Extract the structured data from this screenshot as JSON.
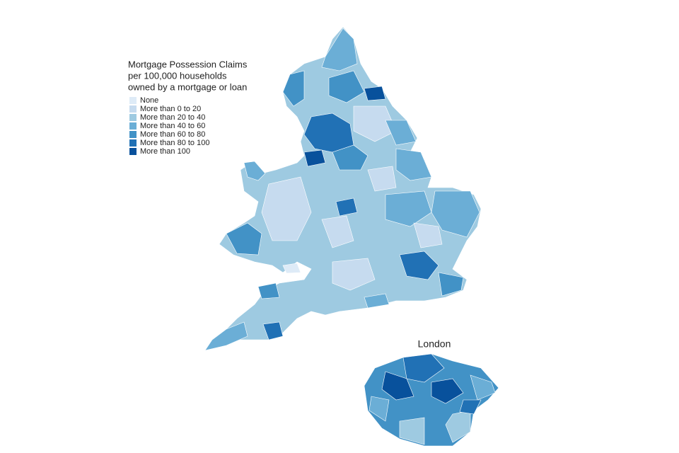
{
  "legend": {
    "title": [
      "Mortgage Possession Claims",
      "per 100,000 households",
      "owned by a mortgage or loan"
    ],
    "items": [
      {
        "label": "None",
        "color": "#deebf7"
      },
      {
        "label": "More than 0 to 20",
        "color": "#c6dbef"
      },
      {
        "label": "More than 20 to 40",
        "color": "#9ecae1"
      },
      {
        "label": "More than 40 to 60",
        "color": "#6baed6"
      },
      {
        "label": "More than 60 to 80",
        "color": "#4292c6"
      },
      {
        "label": "More than 80 to 100",
        "color": "#2171b5"
      },
      {
        "label": "More than 100",
        "color": "#08519c"
      }
    ]
  },
  "inset": {
    "title": "London"
  }
}
